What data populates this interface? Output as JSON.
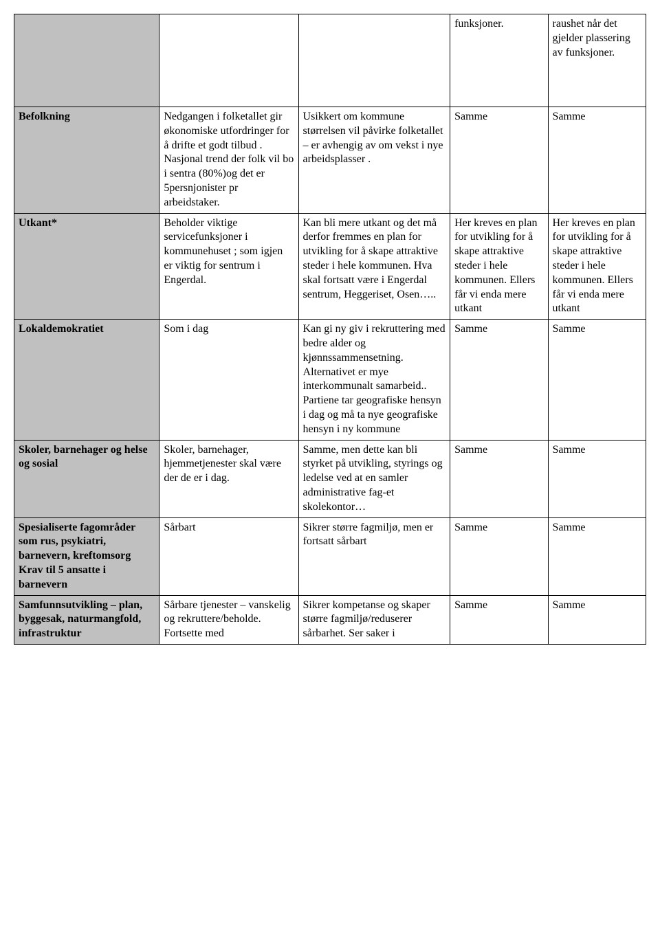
{
  "table": {
    "row0": {
      "c1": "",
      "c2": "",
      "c3": "",
      "c4": "funksjoner.",
      "c5": "raushet når det gjelder plassering av funksjoner."
    },
    "row1": {
      "c1": "Befolkning",
      "c2": "Nedgangen i folketallet gir økonomiske utfordringer for å drifte et godt tilbud . Nasjonal trend der folk vil bo i sentra (80%)og det er 5persnjonister pr arbeidstaker.",
      "c3": "Usikkert om kommune størrelsen vil påvirke folketallet – er avhengig av om vekst i nye arbeidsplasser .",
      "c4": "Samme",
      "c5": "Samme"
    },
    "row2": {
      "c1": "Utkant*",
      "c2": "Beholder viktige servicefunksjoner i kommunehuset ; som igjen er viktig for sentrum i Engerdal.",
      "c3": "Kan bli mere utkant og det må derfor fremmes en  plan for utvikling for å skape attraktive steder i hele kommunen. Hva skal fortsatt være i Engerdal sentrum, Heggeriset, Osen…..",
      "c4": "Her kreves en  plan for utvikling for å skape attraktive steder i hele kommunen. Ellers får vi enda mere utkant",
      "c5": "Her kreves en plan for utvikling for å skape attraktive steder i hele kommunen. Ellers får vi enda mere utkant"
    },
    "row3": {
      "c1": "Lokaldemokratiet",
      "c2": "Som i dag",
      "c3": "Kan gi ny giv i rekruttering  med bedre alder og kjønnssammensetning. Alternativet er mye interkommunalt samarbeid.. \nPartiene tar geografiske hensyn i dag og må ta nye geografiske hensyn  i ny kommune",
      "c4": "Samme",
      "c5": "Samme"
    },
    "row4": {
      "c1": "Skoler, barnehager og helse og sosial",
      "c2": "Skoler, barnehager, hjemmetjenester skal være der de er i dag.",
      "c3": "Samme, men dette kan bli styrket på utvikling, styrings og ledelse ved at en samler administrative fag-et skolekontor…",
      "c4": "Samme",
      "c5": "Samme"
    },
    "row5": {
      "c1": "Spesialiserte fagområder som rus, psykiatri, barnevern, kreftomsorg\nKrav til 5 ansatte i barnevern",
      "c2": "Sårbart",
      "c3": "Sikrer større fagmiljø, men er fortsatt sårbart",
      "c4": "Samme",
      "c5": "Samme"
    },
    "row6": {
      "c1": "Samfunnsutvikling – plan, byggesak, naturmangfold, infrastruktur",
      "c2": "Sårbare tjenester – vanskelig og rekruttere/beholde. Fortsette med",
      "c3": "Sikrer kompetanse og skaper større fagmiljø/reduserer sårbarhet.   Ser saker i",
      "c4": "Samme",
      "c5": "Samme"
    }
  },
  "styling": {
    "header_bg": "#c0c0c0",
    "border_color": "#000000",
    "text_color": "#000000",
    "background_color": "#ffffff",
    "font_family": "Times New Roman",
    "font_size": 16
  }
}
